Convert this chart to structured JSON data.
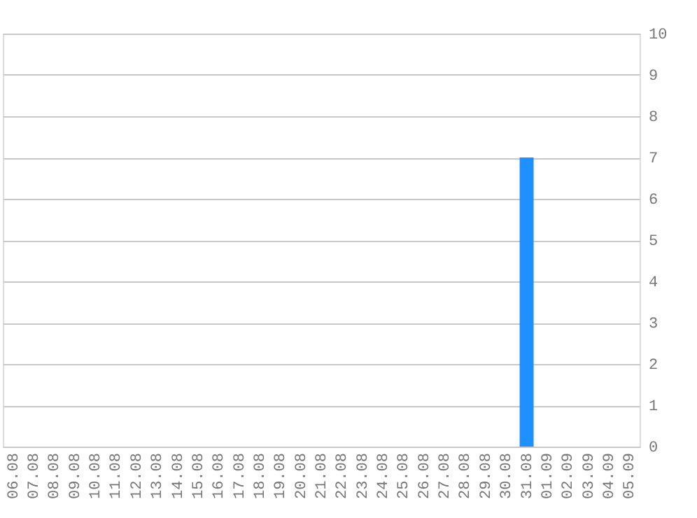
{
  "chart_data": {
    "type": "bar",
    "categories": [
      "06.08",
      "07.08",
      "08.08",
      "09.08",
      "10.08",
      "11.08",
      "12.08",
      "13.08",
      "14.08",
      "15.08",
      "16.08",
      "17.08",
      "18.08",
      "19.08",
      "20.08",
      "21.08",
      "22.08",
      "23.08",
      "24.08",
      "25.08",
      "26.08",
      "27.08",
      "28.08",
      "29.08",
      "30.08",
      "31.08",
      "01.09",
      "02.09",
      "03.09",
      "04.09",
      "05.09"
    ],
    "values": [
      0,
      0,
      0,
      0,
      0,
      0,
      0,
      0,
      0,
      0,
      0,
      0,
      0,
      0,
      0,
      0,
      0,
      0,
      0,
      0,
      0,
      0,
      0,
      0,
      0,
      7,
      0,
      0,
      0,
      0,
      0
    ],
    "color": "#1e90ff",
    "ylim": [
      0,
      10
    ],
    "yticks": [
      0,
      1,
      2,
      3,
      4,
      5,
      6,
      7,
      8,
      9,
      10
    ],
    "grid": "y"
  }
}
